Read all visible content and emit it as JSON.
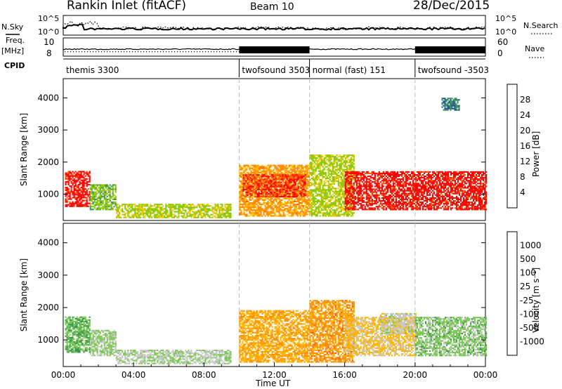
{
  "header": {
    "title": "Rankin Inlet (fitACF)",
    "beam": "Beam 10",
    "date": "28/Dec/2015"
  },
  "panels": {
    "nsky_label": "N.Sky",
    "nsky_ticks": [
      "10^5",
      "10^0"
    ],
    "nsearch_label": "N.Search",
    "nsearch_ticks": [
      "10^5",
      "10^0"
    ],
    "freq_label": "Freq.",
    "freq_unit": "[MHz]",
    "freq_ticks": [
      "10",
      "8"
    ],
    "nave_label": "Nave",
    "nave_ticks": [
      "60",
      "0"
    ],
    "cpid_label": "CPID"
  },
  "cpid_segments": [
    {
      "label": "themis 3300",
      "start_h": 0,
      "end_h": 10
    },
    {
      "label": "twofsound 3503",
      "start_h": 10,
      "end_h": 14
    },
    {
      "label": "normal (fast) 151",
      "start_h": 14,
      "end_h": 20
    },
    {
      "label": "twofsound -3503",
      "start_h": 20,
      "end_h": 24
    }
  ],
  "x_axis": {
    "label": "Time UT",
    "ticks": [
      "00:00",
      "04:00",
      "08:00",
      "12:00",
      "16:00",
      "20:00",
      "00:00"
    ]
  },
  "power_colorbar": {
    "label": "Power [dB]",
    "ticks": [
      "28",
      "24",
      "20",
      "16",
      "12",
      "8",
      "4"
    ],
    "colors": [
      "#ff0000",
      "#ff5a00",
      "#ff8c00",
      "#ffc800",
      "#8cc800",
      "#3c9650",
      "#2850a0",
      "#0000ff"
    ]
  },
  "velocity_colorbar": {
    "label": "Velocity [m s⁻¹]",
    "ticks": [
      "1000",
      "500",
      "100",
      "25",
      "-25",
      "-100",
      "-500",
      "-1000"
    ],
    "colors": [
      "#1e3ca0",
      "#286e8c",
      "#3c9650",
      "#78c850",
      "#c8c8c8",
      "#ffb400",
      "#ff8c00",
      "#ff5000",
      "#ff0000"
    ]
  },
  "chart_data": [
    {
      "type": "heatmap",
      "title": "Power",
      "xlabel": "Time UT",
      "ylabel": "Slant Range [km]",
      "xlim": [
        0,
        24
      ],
      "ylim": [
        180,
        4600
      ],
      "yticks": [
        "1000",
        "2000",
        "3000",
        "4000"
      ],
      "yticks_km": [
        1000,
        2000,
        3000,
        4000
      ],
      "colorbar_range_dB": [
        0,
        30
      ],
      "regions": [
        {
          "t0": 0.1,
          "t1": 1.5,
          "r0": 600,
          "r1": 1700,
          "value": 28
        },
        {
          "t0": 1.5,
          "t1": 3.0,
          "r0": 500,
          "r1": 1300,
          "value": 12
        },
        {
          "t0": 3.0,
          "t1": 9.5,
          "r0": 250,
          "r1": 700,
          "value": 14
        },
        {
          "t0": 10.0,
          "t1": 14.0,
          "r0": 300,
          "r1": 1900,
          "value": 20
        },
        {
          "t0": 10.2,
          "t1": 13.8,
          "r0": 900,
          "r1": 1600,
          "value": 26
        },
        {
          "t0": 14.0,
          "t1": 16.5,
          "r0": 300,
          "r1": 2200,
          "value": 14
        },
        {
          "t0": 16.0,
          "t1": 24.0,
          "r0": 500,
          "r1": 1700,
          "value": 28
        },
        {
          "t0": 21.5,
          "t1": 22.5,
          "r0": 3600,
          "r1": 4000,
          "value": 8
        }
      ]
    },
    {
      "type": "heatmap",
      "title": "Velocity",
      "xlabel": "Time UT",
      "ylabel": "Slant Range [km]",
      "xlim": [
        0,
        24
      ],
      "ylim": [
        180,
        4600
      ],
      "yticks": [
        "1000",
        "2000",
        "3000",
        "4000"
      ],
      "yticks_km": [
        1000,
        2000,
        3000,
        4000
      ],
      "colorbar_range_ms": [
        -1000,
        1000
      ],
      "regions": [
        {
          "t0": 0.1,
          "t1": 1.5,
          "r0": 600,
          "r1": 1700,
          "value": 300
        },
        {
          "t0": 1.5,
          "t1": 3.0,
          "r0": 500,
          "r1": 1300,
          "value": 150
        },
        {
          "t0": 3.0,
          "t1": 9.5,
          "r0": 250,
          "r1": 700,
          "value": 100
        },
        {
          "t0": 10.0,
          "t1": 14.0,
          "r0": 300,
          "r1": 1900,
          "value": -300
        },
        {
          "t0": 14.0,
          "t1": 16.5,
          "r0": 300,
          "r1": 2200,
          "value": -400
        },
        {
          "t0": 16.0,
          "t1": 20.0,
          "r0": 500,
          "r1": 1700,
          "value": -150
        },
        {
          "t0": 18.0,
          "t1": 20.0,
          "r0": 1200,
          "r1": 1800,
          "value": 0
        },
        {
          "t0": 20.0,
          "t1": 24.0,
          "r0": 500,
          "r1": 1700,
          "value": 200
        }
      ]
    }
  ]
}
